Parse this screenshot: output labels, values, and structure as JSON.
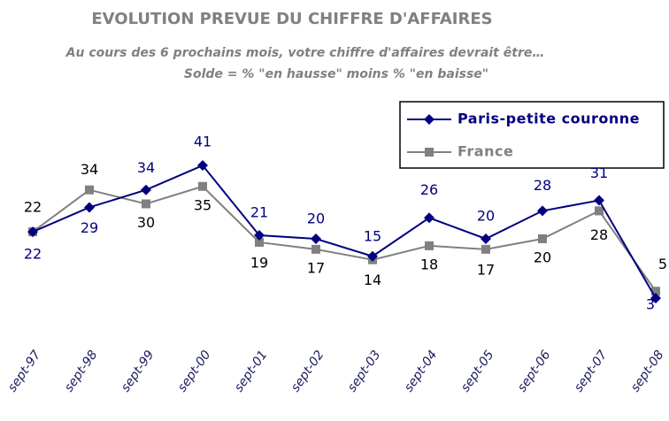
{
  "chart_data": {
    "type": "line",
    "title": "EVOLUTION PREVUE DU CHIFFRE D'AFFAIRES",
    "subtitle": [
      "Au cours des 6 prochains mois, votre chiffre d'affaires devrait être…",
      "Solde = % \"en hausse\"  moins % \"en baisse\""
    ],
    "categories": [
      "sept-97",
      "sept-98",
      "sept-99",
      "sept-00",
      "sept-01",
      "sept-02",
      "sept-03",
      "sept-04",
      "sept-05",
      "sept-06",
      "sept-07",
      "sept-08"
    ],
    "series": [
      {
        "name": "Paris-petite couronne",
        "color": "#000080",
        "values": [
          22,
          29,
          34,
          41,
          21,
          20,
          15,
          26,
          20,
          28,
          31,
          3
        ]
      },
      {
        "name": "France",
        "color": "#808080",
        "values": [
          22,
          34,
          30,
          35,
          19,
          17,
          14,
          18,
          17,
          20,
          28,
          5
        ]
      }
    ],
    "ylim": [
      0,
      60
    ],
    "legend": "upper right"
  }
}
